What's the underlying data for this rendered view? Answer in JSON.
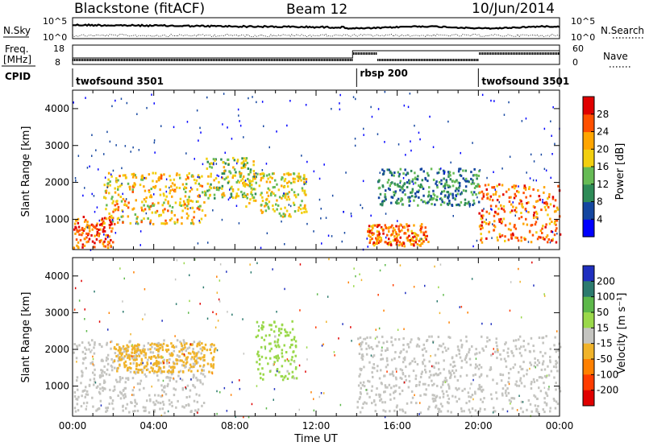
{
  "header": {
    "station": "Blackstone (fitACF)",
    "beam": "Beam 12",
    "date": "10/Jun/2014"
  },
  "nsky_panel": {
    "left_label": "N.Sky",
    "right_label": "N.Search",
    "left_ticks": [
      "10^5",
      "10^0"
    ],
    "right_ticks": [
      "10^5",
      "10^0"
    ]
  },
  "freq_panel": {
    "left_label_top": "Freq.",
    "left_label_bottom": "[MHz]",
    "left_ticks": [
      "18",
      "8"
    ],
    "right_label": "Nave",
    "right_ticks": [
      "60",
      "0"
    ]
  },
  "cpid": {
    "label": "CPID",
    "segments": [
      {
        "name": "twofsound 3501",
        "start_hour": 0,
        "end_hour": 14
      },
      {
        "name": "rbsp 200",
        "start_hour": 14,
        "end_hour": 20
      },
      {
        "name": "twofsound 3501",
        "start_hour": 20,
        "end_hour": 24
      }
    ]
  },
  "axes": {
    "ylabel": "Slant Range [km]",
    "yticks": [
      "1000",
      "2000",
      "3000",
      "4000"
    ],
    "xticks": [
      "00:00",
      "04:00",
      "08:00",
      "12:00",
      "16:00",
      "20:00",
      "00:00"
    ],
    "xlabel": "Time UT"
  },
  "power_colorbar": {
    "label": "Power [dB]",
    "ticks": [
      "28",
      "24",
      "20",
      "16",
      "12",
      "8",
      "4"
    ],
    "colors": [
      "#0000ff",
      "#1446a0",
      "#2e8b57",
      "#66bb55",
      "#f2cf10",
      "#ffa500",
      "#ff5000",
      "#e00000"
    ]
  },
  "velocity_colorbar": {
    "label": "Velocity [m s⁻¹]",
    "ticks": [
      "200",
      "100",
      "50",
      "15",
      "-15",
      "-50",
      "-100",
      "-200"
    ],
    "colors": [
      "#1f2fbf",
      "#2c7a6e",
      "#5db84a",
      "#9ad84a",
      "#c4c4c0",
      "#f0b32a",
      "#ff8000",
      "#ff3c00",
      "#e00000"
    ]
  },
  "chart_data": [
    {
      "type": "heatmap",
      "title": "Power",
      "x_range_hours": [
        0,
        24
      ],
      "y_range_km": [
        180,
        4500
      ],
      "colorbar_label": "Power [dB]",
      "colorbar_range": [
        0,
        32
      ],
      "echo_bands": [
        {
          "start_hour": 0.0,
          "end_hour": 2.0,
          "range_km": [
            250,
            1100
          ],
          "power_db": 26
        },
        {
          "start_hour": 1.5,
          "end_hour": 6.5,
          "range_km": [
            900,
            2300
          ],
          "power_db": 20
        },
        {
          "start_hour": 6.5,
          "end_hour": 9.0,
          "range_km": [
            1600,
            2700
          ],
          "power_db": 16
        },
        {
          "start_hour": 8.5,
          "end_hour": 11.5,
          "range_km": [
            1100,
            2300
          ],
          "power_db": 18
        },
        {
          "start_hour": 14.5,
          "end_hour": 17.5,
          "range_km": [
            300,
            900
          ],
          "power_db": 24
        },
        {
          "start_hour": 15.0,
          "end_hour": 20.0,
          "range_km": [
            1400,
            2400
          ],
          "power_db": 10
        },
        {
          "start_hour": 20.0,
          "end_hour": 24.0,
          "range_km": [
            400,
            2000
          ],
          "power_db": 24
        }
      ]
    },
    {
      "type": "heatmap",
      "title": "Velocity",
      "x_range_hours": [
        0,
        24
      ],
      "y_range_km": [
        180,
        4500
      ],
      "colorbar_label": "Velocity [m s⁻¹]",
      "colorbar_range": [
        -200,
        200
      ],
      "echo_bands": [
        {
          "start_hour": 0.0,
          "end_hour": 6.5,
          "range_km": [
            300,
            2300
          ],
          "velocity_ms": 0
        },
        {
          "start_hour": 2.0,
          "end_hour": 7.0,
          "range_km": [
            1400,
            2200
          ],
          "velocity_ms": -40
        },
        {
          "start_hour": 9.0,
          "end_hour": 11.0,
          "range_km": [
            1200,
            2800
          ],
          "velocity_ms": 40
        },
        {
          "start_hour": 14.0,
          "end_hour": 24.0,
          "range_km": [
            300,
            2400
          ],
          "velocity_ms": 0
        }
      ]
    }
  ]
}
